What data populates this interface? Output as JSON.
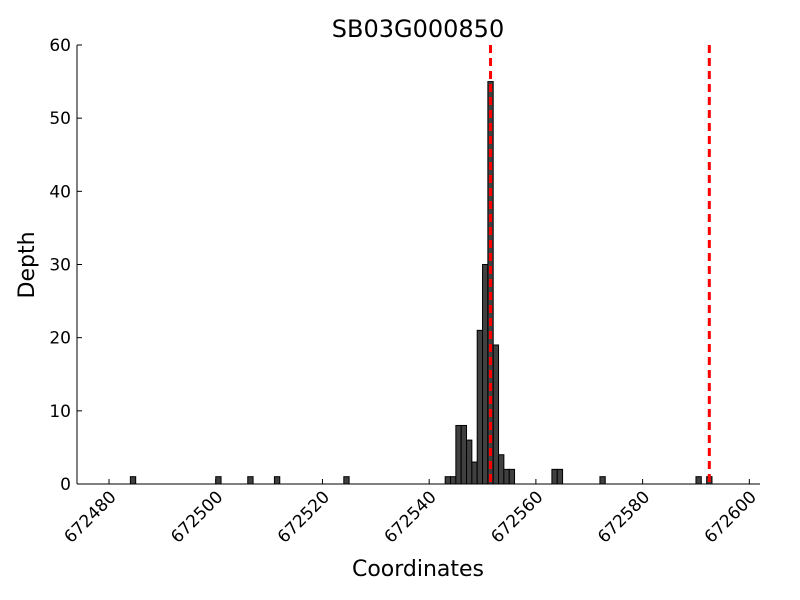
{
  "chart_data": {
    "type": "bar",
    "title": "SB03G000850",
    "xlabel": "Coordinates",
    "ylabel": "Depth",
    "x": [
      672484,
      672500,
      672506,
      672511,
      672524,
      672543,
      672544,
      672545,
      672546,
      672547,
      672548,
      672549,
      672550,
      672551,
      672552,
      672553,
      672554,
      672555,
      672563,
      672564,
      672572,
      672590,
      672592
    ],
    "values": [
      1,
      1,
      1,
      1,
      1,
      1,
      1,
      8,
      8,
      6,
      3,
      21,
      30,
      55,
      19,
      4,
      2,
      2,
      2,
      2,
      1,
      1,
      1
    ],
    "color": "#404040",
    "edgecolor": "#000000",
    "vlines": [
      672551.5,
      672592.5
    ],
    "vline_color": "#ff0000",
    "xlim": [
      672474,
      672602
    ],
    "xticks": [
      672480,
      672500,
      672520,
      672540,
      672560,
      672580,
      672600
    ],
    "ylim": [
      0,
      60
    ],
    "yticks": [
      0,
      10,
      20,
      30,
      40,
      50,
      60
    ]
  }
}
